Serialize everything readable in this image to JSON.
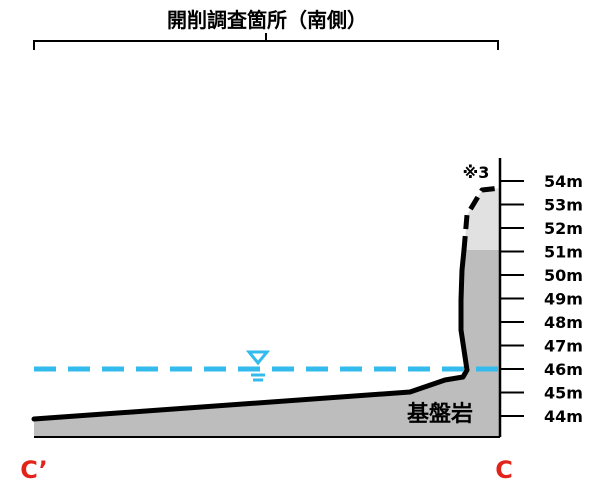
{
  "title": "開削調査箇所（南側）",
  "bedrock_label": "基盤岩",
  "note_label": "※3",
  "section_start_label": "C’",
  "section_end_label": "C",
  "elevation_unit": "m",
  "elevation_ticks": [
    "54m",
    "53m",
    "52m",
    "51m",
    "50m",
    "49m",
    "48m",
    "47m",
    "46m",
    "45m",
    "44m"
  ],
  "groundwater_level": "46m",
  "colors": {
    "bedrock_fill": "#bdbdbd",
    "upper_fill": "#e1e1e1",
    "groundwater": "#33bbee",
    "section_label": "#e2231a",
    "line": "#000000"
  }
}
